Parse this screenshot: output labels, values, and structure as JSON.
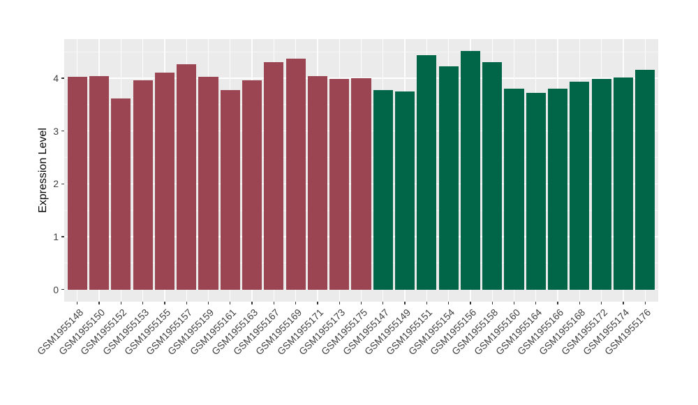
{
  "chart_data": {
    "type": "bar",
    "title": "",
    "xlabel": "",
    "ylabel": "Expression Level",
    "ylim": [
      -0.23,
      4.74
    ],
    "yticks": [
      0,
      1,
      2,
      3,
      4
    ],
    "minor_gridlines": [
      0.5,
      1.5,
      2.5,
      3.5,
      4.5
    ],
    "grid": "horizontal major+minor, vertical major at category centers",
    "legend_position": "none",
    "panel_background": "#EBEBEB",
    "gridline_color": "#FFFFFF",
    "group_colors": {
      "maroon": "#9B4452",
      "green": "#006647"
    },
    "bars": [
      {
        "label": "GSM1955148",
        "value": 4.03,
        "group": "maroon"
      },
      {
        "label": "GSM1955150",
        "value": 4.04,
        "group": "maroon"
      },
      {
        "label": "GSM1955152",
        "value": 3.61,
        "group": "maroon"
      },
      {
        "label": "GSM1955153",
        "value": 3.96,
        "group": "maroon"
      },
      {
        "label": "GSM1955155",
        "value": 4.11,
        "group": "maroon"
      },
      {
        "label": "GSM1955157",
        "value": 4.27,
        "group": "maroon"
      },
      {
        "label": "GSM1955159",
        "value": 4.03,
        "group": "maroon"
      },
      {
        "label": "GSM1955161",
        "value": 3.78,
        "group": "maroon"
      },
      {
        "label": "GSM1955163",
        "value": 3.96,
        "group": "maroon"
      },
      {
        "label": "GSM1955167",
        "value": 4.3,
        "group": "maroon"
      },
      {
        "label": "GSM1955169",
        "value": 4.37,
        "group": "maroon"
      },
      {
        "label": "GSM1955171",
        "value": 4.04,
        "group": "maroon"
      },
      {
        "label": "GSM1955173",
        "value": 3.98,
        "group": "maroon"
      },
      {
        "label": "GSM1955175",
        "value": 4.0,
        "group": "maroon"
      },
      {
        "label": "GSM1955147",
        "value": 3.77,
        "group": "green"
      },
      {
        "label": "GSM1955149",
        "value": 3.75,
        "group": "green"
      },
      {
        "label": "GSM1955151",
        "value": 4.43,
        "group": "green"
      },
      {
        "label": "GSM1955154",
        "value": 4.22,
        "group": "green"
      },
      {
        "label": "GSM1955156",
        "value": 4.51,
        "group": "green"
      },
      {
        "label": "GSM1955158",
        "value": 4.31,
        "group": "green"
      },
      {
        "label": "GSM1955160",
        "value": 3.8,
        "group": "green"
      },
      {
        "label": "GSM1955164",
        "value": 3.72,
        "group": "green"
      },
      {
        "label": "GSM1955166",
        "value": 3.8,
        "group": "green"
      },
      {
        "label": "GSM1955168",
        "value": 3.93,
        "group": "green"
      },
      {
        "label": "GSM1955172",
        "value": 3.99,
        "group": "green"
      },
      {
        "label": "GSM1955174",
        "value": 4.01,
        "group": "green"
      },
      {
        "label": "GSM1955176",
        "value": 4.16,
        "group": "green"
      }
    ]
  }
}
